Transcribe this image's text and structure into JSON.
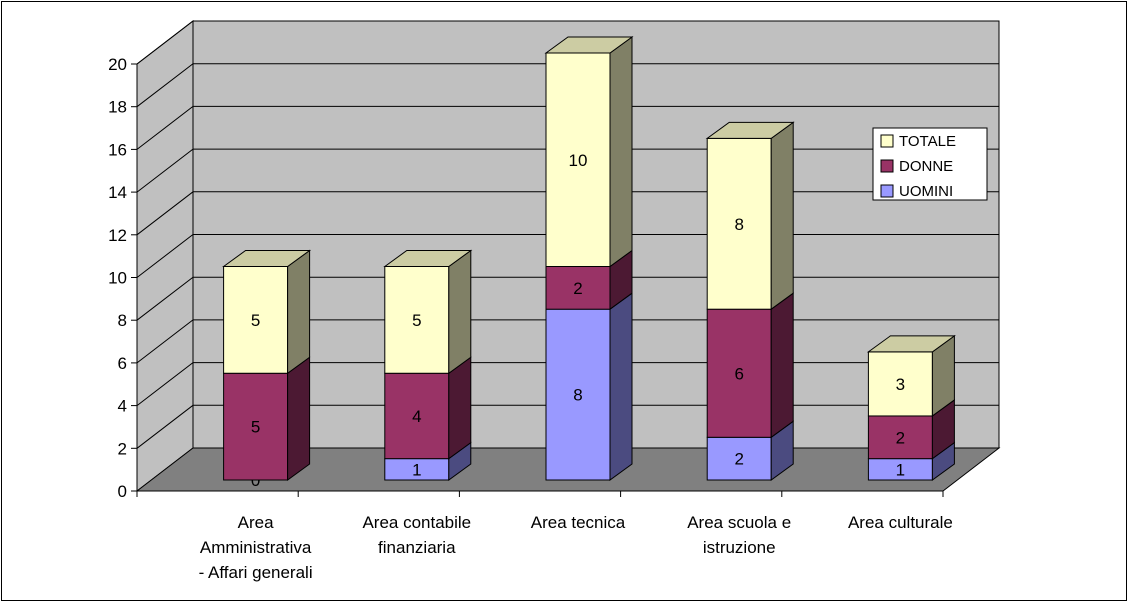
{
  "chart_data": {
    "type": "bar",
    "stacked": true,
    "three_d": true,
    "categories": [
      [
        "Area",
        "Amministrativa",
        "- Affari generali"
      ],
      [
        "Area contabile",
        "finanziaria"
      ],
      [
        "Area tecnica"
      ],
      [
        "Area scuola e",
        "istruzione"
      ],
      [
        "Area culturale"
      ]
    ],
    "series": [
      {
        "name": "UOMINI",
        "values": [
          0,
          1,
          8,
          2,
          1
        ],
        "color": "#9999ff",
        "side": "#4b4b80",
        "top": "#7f7fcc"
      },
      {
        "name": "DONNE",
        "values": [
          5,
          4,
          2,
          6,
          2
        ],
        "color": "#993366",
        "side": "#4c1933",
        "top": "#7a2952"
      },
      {
        "name": "TOTALE",
        "values": [
          5,
          5,
          10,
          8,
          3
        ],
        "color": "#ffffcc",
        "side": "#808066",
        "top": "#cccca3"
      }
    ],
    "ylim": [
      0,
      20
    ],
    "yticks": [
      "0",
      "2",
      "4",
      "6",
      "8",
      "10",
      "12",
      "14",
      "16",
      "18",
      "20"
    ],
    "grid": true,
    "legend_position": "right",
    "legend_order": [
      "TOTALE",
      "DONNE",
      "UOMINI"
    ],
    "colors": {
      "wall": "#c0c0c0",
      "floor": "#808080",
      "grid": "#000000"
    }
  }
}
